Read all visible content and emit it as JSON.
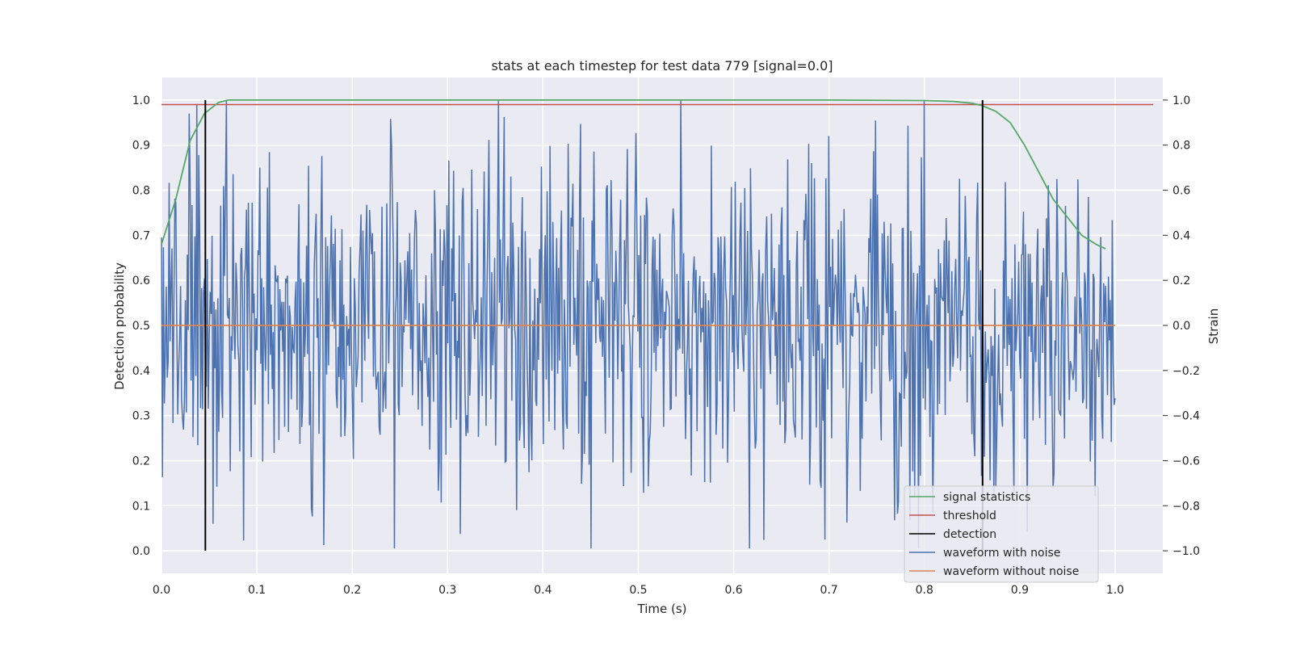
{
  "chart_data": {
    "type": "line",
    "title": "stats at each timestep for test data 779 [signal=0.0]",
    "xlabel": "Time (s)",
    "ylabel_left": "Detection probability",
    "ylabel_right": "Strain",
    "xlim": [
      0.0,
      1.05
    ],
    "ylim_left": [
      -0.05,
      1.05
    ],
    "ylim_right": [
      -1.1,
      1.1
    ],
    "xticks": [
      "0.0",
      "0.1",
      "0.2",
      "0.3",
      "0.4",
      "0.5",
      "0.6",
      "0.7",
      "0.8",
      "0.9",
      "1.0"
    ],
    "yticks_left": [
      "0.0",
      "0.1",
      "0.2",
      "0.3",
      "0.4",
      "0.5",
      "0.6",
      "0.7",
      "0.8",
      "0.9",
      "1.0"
    ],
    "yticks_right": [
      "−1.0",
      "−0.8",
      "−0.6",
      "−0.4",
      "−0.2",
      "0.0",
      "0.2",
      "0.4",
      "0.6",
      "0.8",
      "1.0"
    ],
    "grid": true,
    "background": "#eaeaf2",
    "legend_position": "lower-right",
    "series": [
      {
        "name": "signal statistics",
        "axis": "left",
        "color": "#55a868",
        "x": [
          0.0,
          0.015,
          0.03,
          0.045,
          0.06,
          0.07,
          0.1,
          0.2,
          0.3,
          0.4,
          0.5,
          0.6,
          0.7,
          0.8,
          0.83,
          0.85,
          0.86,
          0.875,
          0.89,
          0.905,
          0.92,
          0.935,
          0.95,
          0.965,
          0.98,
          0.99
        ],
        "y": [
          0.68,
          0.78,
          0.91,
          0.97,
          0.995,
          1.0,
          1.0,
          1.0,
          1.0,
          1.0,
          1.0,
          1.0,
          1.0,
          0.999,
          0.997,
          0.993,
          0.988,
          0.975,
          0.95,
          0.9,
          0.84,
          0.78,
          0.74,
          0.7,
          0.68,
          0.67
        ]
      },
      {
        "name": "threshold",
        "axis": "left",
        "color": "#c44e52",
        "x": [
          0.0,
          1.04
        ],
        "y": [
          0.99,
          0.99
        ]
      },
      {
        "name": "detection",
        "axis": "left",
        "color": "#000000",
        "segments": [
          {
            "x": 0.046,
            "y0": 0.0,
            "y1": 1.0
          },
          {
            "x": 0.861,
            "y0": 0.0,
            "y1": 1.0
          }
        ]
      },
      {
        "name": "waveform with noise",
        "axis": "right",
        "color": "#4c72b0",
        "x_range": [
          0.0,
          1.0
        ],
        "n_points": 1000,
        "noise_std": 0.38,
        "y_range": [
          -0.99,
          1.0
        ]
      },
      {
        "name": "waveform without noise",
        "axis": "right",
        "color": "#dd8452",
        "x": [
          0.0,
          1.0
        ],
        "y": [
          0.0,
          0.0
        ]
      }
    ]
  }
}
